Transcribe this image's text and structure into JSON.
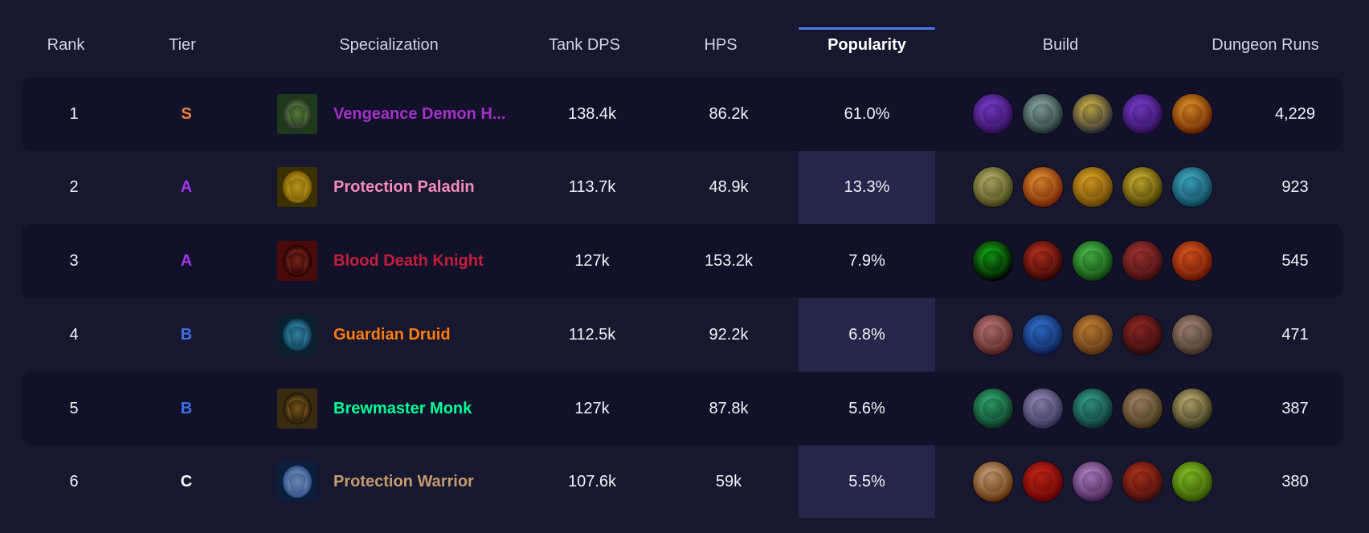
{
  "header": {
    "rank": "Rank",
    "tier": "Tier",
    "specialization": "Specialization",
    "tank_dps": "Tank DPS",
    "hps": "HPS",
    "popularity": "Popularity",
    "build": "Build",
    "dungeon_runs": "Dungeon Runs"
  },
  "colors": {
    "accent": "#4a7be8",
    "tier_S": "#f0803c",
    "tier_A": "#a335ee",
    "tier_B": "#3d6fe6",
    "tier_C": "#ffffff"
  },
  "rows": [
    {
      "rank": "1",
      "tier": "S",
      "spec": "Vengeance Demon H...",
      "spec_color": "#a330c9",
      "spec_icon": "vengeance-demon-hunter-icon",
      "tank_dps": "138.4k",
      "hps": "86.2k",
      "popularity": "61.0%",
      "dungeon_runs": "4,229",
      "build": [
        "void-sphere-icon",
        "demon-skull-icon",
        "golden-slash-icon",
        "void-sphere-icon",
        "flame-claw-icon"
      ]
    },
    {
      "rank": "2",
      "tier": "A",
      "spec": "Protection Paladin",
      "spec_color": "#f48cba",
      "spec_icon": "protection-paladin-icon",
      "tank_dps": "113.7k",
      "hps": "48.9k",
      "popularity": "13.3%",
      "dungeon_runs": "923",
      "build": [
        "lion-head-icon",
        "holy-fire-icon",
        "golden-aura-icon",
        "golden-helm-icon",
        "chain-gear-icon"
      ]
    },
    {
      "rank": "3",
      "tier": "A",
      "spec": "Blood Death Knight",
      "spec_color": "#c41e3a",
      "spec_icon": "blood-death-knight-icon",
      "tank_dps": "127k",
      "hps": "153.2k",
      "popularity": "7.9%",
      "dungeon_runs": "545",
      "build": [
        "green-portal-icon",
        "dark-skull-icon",
        "green-skull-icon",
        "bloody-blade-icon",
        "burning-heart-icon"
      ]
    },
    {
      "rank": "4",
      "tier": "B",
      "spec": "Guardian Druid",
      "spec_color": "#ff7c0a",
      "spec_icon": "guardian-druid-icon",
      "tank_dps": "112.5k",
      "hps": "92.2k",
      "popularity": "6.8%",
      "dungeon_runs": "471",
      "build": [
        "claw-wound-icon",
        "blue-swirl-icon",
        "fist-strike-icon",
        "bear-roar-icon",
        "bone-claw-icon"
      ]
    },
    {
      "rank": "5",
      "tier": "B",
      "spec": "Brewmaster Monk",
      "spec_color": "#00ff98",
      "spec_icon": "brewmaster-monk-icon",
      "tank_dps": "127k",
      "hps": "87.8k",
      "popularity": "5.6%",
      "dungeon_runs": "387",
      "build": [
        "jade-swirl-icon",
        "purple-wind-icon",
        "jade-blade-icon",
        "bronze-plate-icon",
        "drunken-monk-icon"
      ]
    },
    {
      "rank": "6",
      "tier": "C",
      "spec": "Protection Warrior",
      "spec_color": "#c69b6d",
      "spec_icon": "protection-warrior-icon",
      "tank_dps": "107.6k",
      "hps": "59k",
      "popularity": "5.5%",
      "dungeon_runs": "380",
      "build": [
        "steel-shield-icon",
        "red-rush-icon",
        "screaming-face-icon",
        "rage-demon-icon",
        "green-ogre-icon"
      ]
    }
  ]
}
